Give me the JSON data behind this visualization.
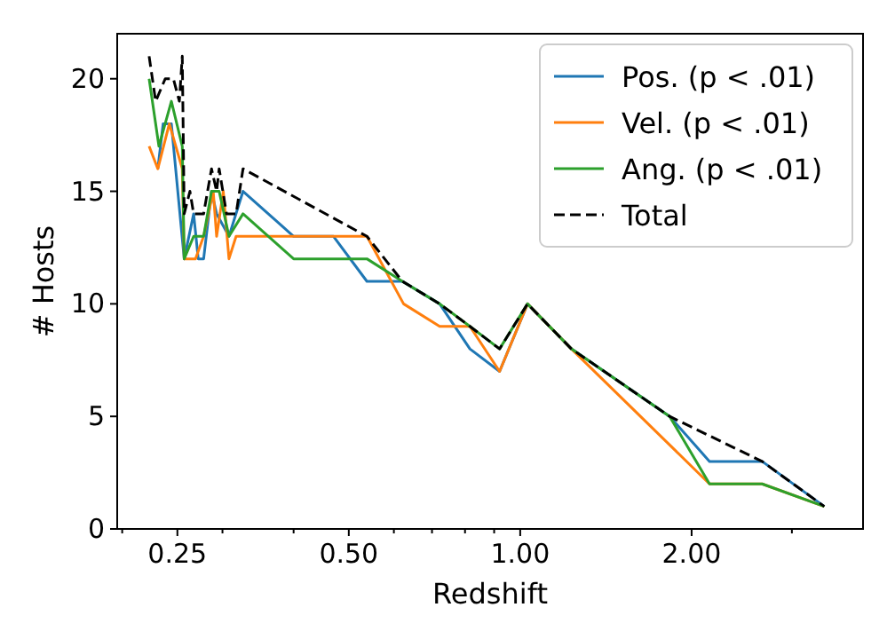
{
  "chart_data": {
    "type": "line",
    "xlabel": "Redshift",
    "ylabel": "# Hosts",
    "log": "x",
    "grid": false,
    "legend": "top right",
    "line_style": "solid",
    "marker": "none",
    "xlim": [
      0.196,
      4.0
    ],
    "ylim": [
      0,
      22
    ],
    "xticks": [
      {
        "value": 0.2,
        "label": null
      },
      {
        "value": 0.25,
        "label": "0.25"
      },
      {
        "value": 0.3,
        "label": null
      },
      {
        "value": 0.4,
        "label": null
      },
      {
        "value": 0.5,
        "label": "0.50"
      },
      {
        "value": 0.6,
        "label": null
      },
      {
        "value": 0.7,
        "label": null
      },
      {
        "value": 0.8,
        "label": null
      },
      {
        "value": 0.9,
        "label": null
      },
      {
        "value": 1.0,
        "label": "1.00"
      },
      {
        "value": 2.0,
        "label": "2.00"
      },
      {
        "value": 3.0,
        "label": null
      }
    ],
    "yticks": [
      0,
      5,
      10,
      15,
      20
    ],
    "series": [
      {
        "name": "Pos. (p < .01)",
        "color": "#1f77b4",
        "x": [
          0.231,
          0.236,
          0.244,
          0.257,
          0.267,
          0.272,
          0.278,
          0.287,
          0.293,
          0.308,
          0.326,
          0.4,
          0.47,
          0.538,
          0.621,
          0.722,
          0.816,
          0.92,
          1.03,
          1.23,
          1.83,
          2.15,
          2.66,
          3.42
        ],
        "values": [
          16,
          18,
          18,
          12,
          14,
          12,
          12,
          15,
          14,
          13,
          15,
          13,
          13,
          11,
          11,
          10,
          8,
          7,
          10,
          8,
          5,
          3,
          3,
          1
        ]
      },
      {
        "name": "Vel. (p < .01)",
        "color": "#ff7f0e",
        "x": [
          0.223,
          0.231,
          0.242,
          0.255,
          0.257,
          0.269,
          0.278,
          0.289,
          0.293,
          0.301,
          0.308,
          0.317,
          0.538,
          0.624,
          0.722,
          0.816,
          0.92,
          1.03,
          1.23,
          2.15,
          2.66,
          3.42
        ],
        "values": [
          17,
          16,
          18,
          16,
          12,
          12,
          13,
          15,
          13,
          15,
          12,
          13,
          13,
          10,
          9,
          9,
          7,
          10,
          8,
          2,
          2,
          1
        ]
      },
      {
        "name": "Ang. (p < .01)",
        "color": "#2ca02c",
        "x": [
          0.223,
          0.232,
          0.244,
          0.255,
          0.257,
          0.267,
          0.278,
          0.287,
          0.296,
          0.308,
          0.326,
          0.4,
          0.538,
          0.621,
          0.722,
          0.816,
          0.92,
          1.03,
          1.23,
          1.83,
          2.15,
          2.66,
          3.42
        ],
        "values": [
          20,
          17,
          19,
          17,
          12,
          13,
          13,
          15,
          15,
          13,
          14,
          12,
          12,
          11,
          10,
          9,
          8,
          10,
          8,
          5,
          2,
          2,
          1
        ]
      },
      {
        "name": "Total",
        "color": "#000000",
        "line_style": "dashed",
        "x": [
          0.223,
          0.229,
          0.238,
          0.246,
          0.252,
          0.255,
          0.257,
          0.263,
          0.267,
          0.278,
          0.287,
          0.293,
          0.296,
          0.305,
          0.317,
          0.326,
          0.538,
          0.621,
          0.722,
          0.816,
          0.92,
          1.03,
          1.23,
          1.83,
          2.66,
          3.42
        ],
        "values": [
          21,
          19,
          20,
          20,
          19,
          21,
          14,
          15,
          14,
          14,
          16,
          15,
          16,
          14,
          14,
          16,
          13,
          11,
          10,
          9,
          8,
          10,
          8,
          5,
          3,
          1
        ]
      }
    ]
  }
}
